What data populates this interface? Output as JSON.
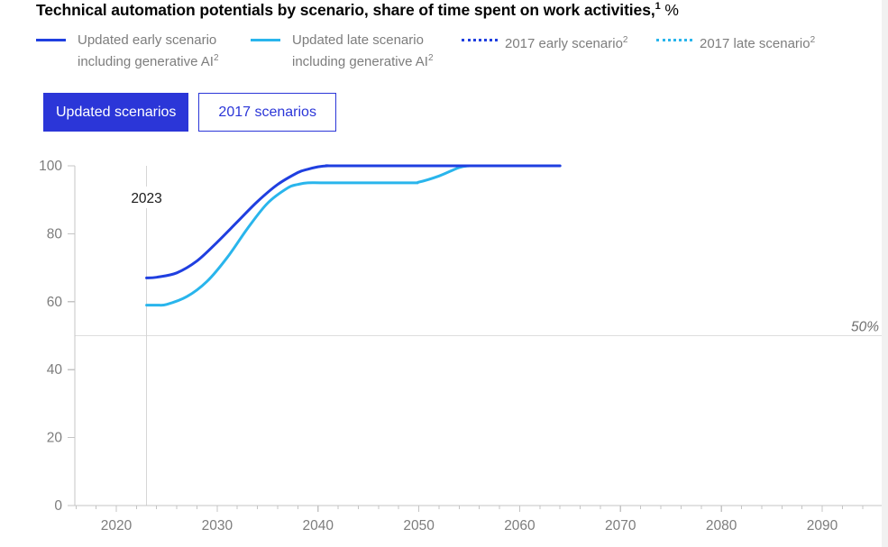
{
  "title": {
    "text": "Technical automation potentials by scenario, share of time spent on work activities,",
    "sup": "1",
    "unit": "%"
  },
  "legend": {
    "items": [
      {
        "line1": "Updated early scenario",
        "line2": "including generative AI",
        "sup": "2",
        "style": "solid",
        "color": "#1f3fe0"
      },
      {
        "line1": "Updated late scenario",
        "line2": "including generative AI",
        "sup": "2",
        "style": "solid",
        "color": "#29b5ec"
      },
      {
        "line1": "2017 early scenario",
        "line2": "",
        "sup": "2",
        "style": "dotted",
        "color": "#1f3fe0"
      },
      {
        "line1": "2017 late scenario",
        "line2": "",
        "sup": "2",
        "style": "dotted",
        "color": "#29b5ec"
      }
    ]
  },
  "buttons": [
    {
      "label": "Updated scenarios",
      "active": true
    },
    {
      "label": "2017 scenarios",
      "active": false
    }
  ],
  "colors": {
    "primary_blue": "#2b36d8",
    "line_early": "#1f3fe0",
    "line_late": "#29b5ec",
    "axis": "#c4c4c4",
    "grid_light": "#dedede",
    "tick_label": "#7d7d7d",
    "annotation_text": "#1a1a1a",
    "reference_label": "#6f6f6f"
  },
  "chart_data": {
    "type": "line",
    "title": "Technical automation potentials by scenario, share of time spent on work activities, %",
    "xlabel": "",
    "ylabel": "",
    "xlim": [
      2016,
      2096
    ],
    "ylim": [
      0,
      100
    ],
    "grid": "off",
    "legend_position": "top",
    "y_ticks": [
      0,
      20,
      40,
      60,
      80,
      100
    ],
    "x_ticks_major": [
      2020,
      2030,
      2040,
      2050,
      2060,
      2070,
      2080,
      2090
    ],
    "x_tick_minor_step": 2,
    "x_minor_range": [
      2016,
      2096
    ],
    "reference_line": {
      "value": 50,
      "label": "50%"
    },
    "annotation": {
      "x": 2023,
      "label": "2023"
    },
    "series": [
      {
        "name": "Updated early scenario including generative AI",
        "color": "#1f3fe0",
        "points": [
          [
            2023,
            67
          ],
          [
            2024,
            67.2
          ],
          [
            2026,
            68.5
          ],
          [
            2028,
            72
          ],
          [
            2030,
            77.5
          ],
          [
            2032,
            83.5
          ],
          [
            2034,
            89.5
          ],
          [
            2036,
            94.5
          ],
          [
            2038,
            98
          ],
          [
            2039,
            99
          ],
          [
            2040,
            99.7
          ],
          [
            2041,
            100
          ],
          [
            2043,
            100
          ],
          [
            2064,
            100
          ]
        ]
      },
      {
        "name": "Updated late scenario including generative AI",
        "color": "#29b5ec",
        "points": [
          [
            2023,
            59
          ],
          [
            2024,
            59
          ],
          [
            2025,
            59.2
          ],
          [
            2027,
            61.5
          ],
          [
            2029,
            66
          ],
          [
            2031,
            73
          ],
          [
            2033,
            81.5
          ],
          [
            2035,
            89
          ],
          [
            2037,
            93.5
          ],
          [
            2038,
            94.5
          ],
          [
            2039,
            95
          ],
          [
            2041,
            95
          ],
          [
            2049,
            95
          ],
          [
            2050,
            95.2
          ],
          [
            2052,
            97
          ],
          [
            2054,
            99.5
          ],
          [
            2055,
            100
          ]
        ]
      }
    ]
  }
}
